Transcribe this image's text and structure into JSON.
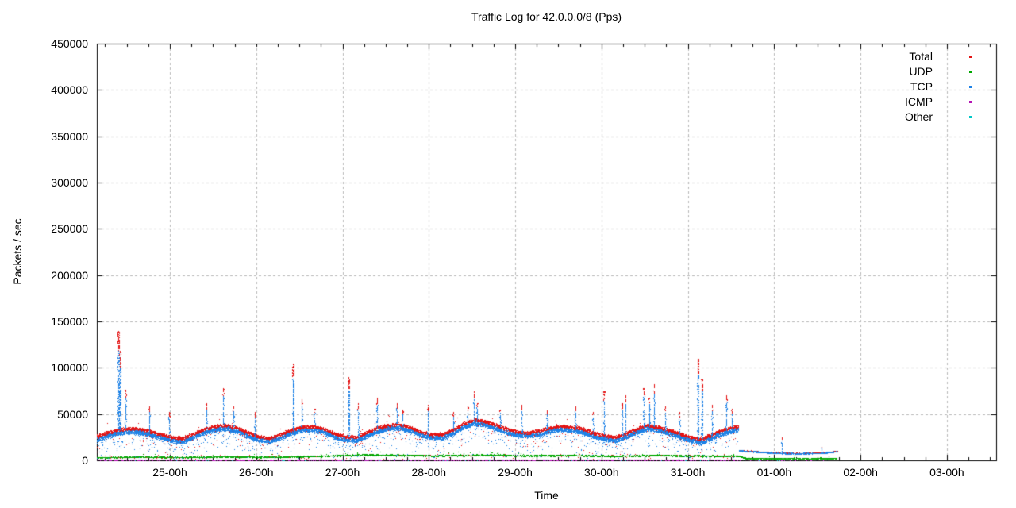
{
  "chart_data": {
    "type": "scatter",
    "title": "Traffic Log for 42.0.0.0/8 (Pps)",
    "xlabel": "Time",
    "ylabel": "Packets / sec",
    "ylim": [
      0,
      450000
    ],
    "yticks": [
      0,
      50000,
      100000,
      150000,
      200000,
      250000,
      300000,
      350000,
      400000,
      450000
    ],
    "x_unit": "hours-from-axis-start (axis starts 24-04h)",
    "x_range": [
      0,
      250
    ],
    "xticks": [
      {
        "t": 20.3,
        "label": "25-00h"
      },
      {
        "t": 44.3,
        "label": "26-00h"
      },
      {
        "t": 68.3,
        "label": "27-00h"
      },
      {
        "t": 92.3,
        "label": "28-00h"
      },
      {
        "t": 116.3,
        "label": "29-00h"
      },
      {
        "t": 140.3,
        "label": "30-00h"
      },
      {
        "t": 164.3,
        "label": "31-00h"
      },
      {
        "t": 188.3,
        "label": "01-00h"
      },
      {
        "t": 212.3,
        "label": "02-00h"
      },
      {
        "t": 236.3,
        "label": "03-00h"
      }
    ],
    "minor_xtick_hours": 6,
    "grid": true,
    "legend_position": "top-right-inside",
    "frame_color": "#000000",
    "grid_color": "#b8b8b8",
    "band_end_hour": 178.3,
    "series": [
      {
        "name": "Total",
        "color": "#e41414",
        "style": "dots",
        "hours": [
          0,
          3,
          6,
          9,
          12,
          15,
          18,
          21,
          24,
          27,
          30,
          33,
          36,
          39,
          42,
          45,
          48,
          51,
          54,
          57,
          60,
          63,
          66,
          69,
          72,
          75,
          78,
          81,
          84,
          87,
          90,
          93,
          96,
          99,
          102,
          105,
          108,
          111,
          114,
          117,
          120,
          123,
          126,
          129,
          132,
          135,
          138,
          141,
          144,
          147,
          150,
          153,
          156,
          159,
          162,
          165,
          168,
          171,
          174,
          177,
          178.3
        ],
        "values_kpps": [
          26,
          30,
          33,
          35,
          34,
          31,
          28,
          25,
          24,
          29,
          34,
          37,
          38,
          35,
          30,
          26,
          24,
          28,
          33,
          36,
          37,
          34,
          29,
          26,
          25,
          30,
          35,
          38,
          39,
          36,
          31,
          28,
          28,
          33,
          40,
          44,
          42,
          38,
          34,
          31,
          30,
          32,
          35,
          37,
          36,
          34,
          30,
          27,
          25,
          29,
          34,
          38,
          36,
          33,
          29,
          25,
          23,
          28,
          33,
          36,
          37
        ]
      },
      {
        "name": "UDP",
        "color": "#00a800",
        "style": "dots",
        "hours": [
          0,
          12,
          24,
          36,
          48,
          60,
          66,
          72,
          84,
          96,
          108,
          120,
          132,
          144,
          156,
          168,
          178.3,
          180,
          190,
          200,
          205.8
        ],
        "values_kpps": [
          3.2,
          3.8,
          3.4,
          3.9,
          3.6,
          4.5,
          5.2,
          6,
          5.6,
          5.2,
          6,
          5.2,
          5.6,
          4.6,
          5.6,
          4.8,
          5,
          2.4,
          2,
          2.1,
          2.3
        ]
      },
      {
        "name": "TCP",
        "color": "#1e82e6",
        "style": "dots",
        "hours": [
          0,
          3,
          6,
          9,
          12,
          15,
          18,
          21,
          24,
          27,
          30,
          33,
          36,
          39,
          42,
          45,
          48,
          51,
          54,
          57,
          60,
          63,
          66,
          69,
          72,
          75,
          78,
          81,
          84,
          87,
          90,
          93,
          96,
          99,
          102,
          105,
          108,
          111,
          114,
          117,
          120,
          123,
          126,
          129,
          132,
          135,
          138,
          141,
          144,
          147,
          150,
          153,
          156,
          159,
          162,
          165,
          168,
          171,
          174,
          177,
          178.3
        ],
        "values_kpps": [
          22.5,
          26.5,
          29.5,
          31.5,
          30.5,
          27.5,
          24.5,
          21.5,
          20.5,
          25.5,
          30.5,
          33.5,
          34.5,
          31.5,
          26.5,
          22.5,
          20.5,
          24.5,
          29.5,
          32.5,
          33.5,
          30.5,
          25.5,
          22.5,
          21.5,
          26.5,
          31.5,
          34.5,
          35.5,
          32.5,
          27.5,
          24.5,
          24.5,
          29.5,
          36.5,
          40.5,
          38.5,
          34.5,
          30.5,
          27.5,
          26.5,
          28.5,
          31.5,
          33.5,
          32.5,
          30.5,
          26.5,
          23.5,
          21.5,
          25.5,
          30.5,
          34.5,
          32.5,
          29.5,
          25.5,
          21.5,
          19.5,
          24.5,
          29.5,
          32.5,
          33.5
        ]
      },
      {
        "name": "ICMP",
        "color": "#b414b4",
        "style": "dots",
        "hours": [
          0,
          203
        ],
        "values_kpps": [
          0.45,
          0.45
        ]
      },
      {
        "name": "Other",
        "color": "#00c8c8",
        "style": "dots",
        "hours": [
          0,
          205.8
        ],
        "values_kpps": [
          0.25,
          0.25
        ]
      }
    ],
    "tail": {
      "comment": "low-rate continuation after main traffic stops (31-14h to 01-18h)",
      "hours": [
        178.5,
        183,
        187,
        191,
        195,
        199,
        203,
        205.8
      ],
      "tcp_kpps": [
        10.5,
        9.5,
        8.5,
        7.8,
        7.5,
        7.8,
        8.5,
        9.8
      ],
      "total_extra_kpps": 0.6
    },
    "spikes_hour_peakkpps": [
      [
        6,
        140
      ],
      [
        6.4,
        118
      ],
      [
        8,
        76
      ],
      [
        14.5,
        58
      ],
      [
        20,
        52
      ],
      [
        30.5,
        62
      ],
      [
        35,
        78
      ],
      [
        38,
        58
      ],
      [
        44,
        52
      ],
      [
        54.5,
        105
      ],
      [
        57,
        66
      ],
      [
        60.5,
        56
      ],
      [
        70,
        90
      ],
      [
        72.5,
        62
      ],
      [
        78,
        68
      ],
      [
        83.4,
        62
      ],
      [
        85,
        55
      ],
      [
        92,
        60
      ],
      [
        99,
        52
      ],
      [
        103,
        58
      ],
      [
        104.7,
        75
      ],
      [
        105.6,
        62
      ],
      [
        112,
        55
      ],
      [
        118,
        60
      ],
      [
        125,
        54
      ],
      [
        133,
        58
      ],
      [
        138,
        52
      ],
      [
        141,
        75
      ],
      [
        146,
        62
      ],
      [
        147,
        70
      ],
      [
        152,
        78
      ],
      [
        153.5,
        68
      ],
      [
        155,
        82
      ],
      [
        158,
        58
      ],
      [
        162,
        52
      ],
      [
        167,
        110
      ],
      [
        168.2,
        88
      ],
      [
        171,
        60
      ],
      [
        175,
        70
      ],
      [
        176.5,
        56
      ],
      [
        190.5,
        25
      ],
      [
        201.5,
        15
      ]
    ]
  }
}
